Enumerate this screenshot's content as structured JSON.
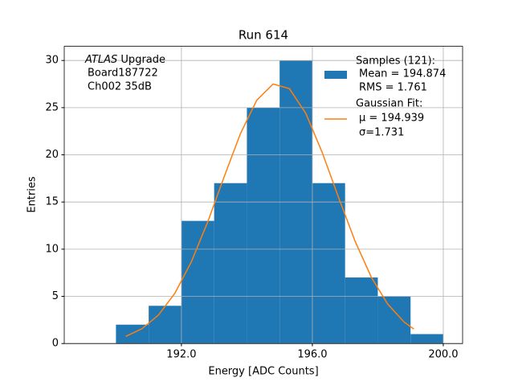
{
  "chart_data": {
    "type": "histogram",
    "title": "Run 614",
    "xlabel": "Energy [ADC Counts]",
    "ylabel": "Entries",
    "bins": [
      190,
      191,
      192,
      193,
      194,
      195,
      196,
      197,
      198,
      199,
      200
    ],
    "values": [
      2,
      4,
      13,
      17,
      25,
      30,
      17,
      7,
      5,
      1
    ],
    "color": "#1f77b4",
    "series_name": "Samples (121):",
    "series_lines": [
      "Mean = 194.874",
      "RMS = 1.761"
    ],
    "fit": {
      "name": "Gaussian Fit:",
      "lines": [
        "μ = 194.939",
        "σ=1.731"
      ],
      "color": "#ff7f0e",
      "x": [
        190.3,
        190.8,
        191.3,
        191.8,
        192.3,
        192.8,
        193.3,
        193.8,
        194.3,
        194.8,
        195.3,
        195.8,
        196.3,
        196.8,
        197.3,
        197.8,
        198.3,
        198.8,
        199.1
      ],
      "values": [
        0.76,
        1.58,
        3.03,
        5.33,
        8.64,
        12.86,
        17.63,
        22.23,
        25.78,
        27.51,
        27.01,
        24.39,
        20.26,
        15.49,
        10.89,
        7.04,
        4.19,
        2.29,
        1.54
      ]
    },
    "annotation": [
      "ATLAS",
      "Upgrade",
      "Board187722",
      "Ch002 35dB"
    ],
    "xlim": [
      188.42,
      200.59
    ],
    "ylim": [
      0,
      31.5
    ],
    "xticks": [
      {
        "value": 192,
        "label": "192.0"
      },
      {
        "value": 196,
        "label": "196.0"
      },
      {
        "value": 200,
        "label": "200.0"
      }
    ],
    "yticks": [
      0,
      5,
      10,
      15,
      20,
      25,
      30
    ],
    "grid": true
  }
}
